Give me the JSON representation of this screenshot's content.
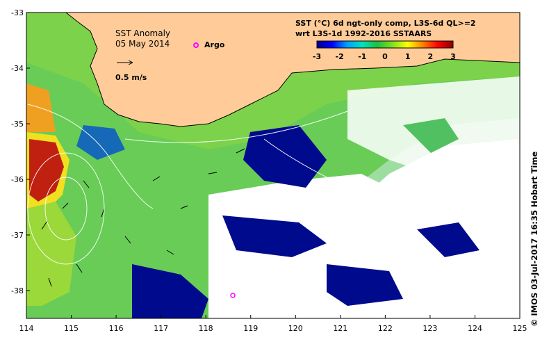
{
  "map": {
    "title": "SST Anomaly",
    "date": "05 May 2014",
    "argo_label": "Argo",
    "argo_color": "#ff00ff",
    "vector_scale_label": "0.5 m/s",
    "colorbar": {
      "line1": "SST (°C) 6d ngt-only comp, L3S-6d QL>=2",
      "line2": "wrt L3S-1d 1992-2016 SSTAARS",
      "ticks": [
        "-3",
        "-2",
        "-1",
        "0",
        "1",
        "2",
        "3"
      ],
      "range": [
        -3,
        3
      ],
      "colors": [
        "#00008b",
        "#0000ff",
        "#00a0ff",
        "#00e0c0",
        "#20c040",
        "#80e020",
        "#ffff00",
        "#ff8000",
        "#ff0000",
        "#8b0000"
      ]
    },
    "x_ticks": [
      "114",
      "115",
      "116",
      "117",
      "118",
      "119",
      "120",
      "121",
      "122",
      "123",
      "124",
      "125"
    ],
    "y_ticks": [
      "-33",
      "-34",
      "-35",
      "-36",
      "-37",
      "-38"
    ],
    "lon_range": [
      114,
      125
    ],
    "lat_range": [
      -38.5,
      -33
    ],
    "land_color": "#ffcc99",
    "credit": "© IMOS 03-Jul-2017 16:35 Hobart Time"
  }
}
